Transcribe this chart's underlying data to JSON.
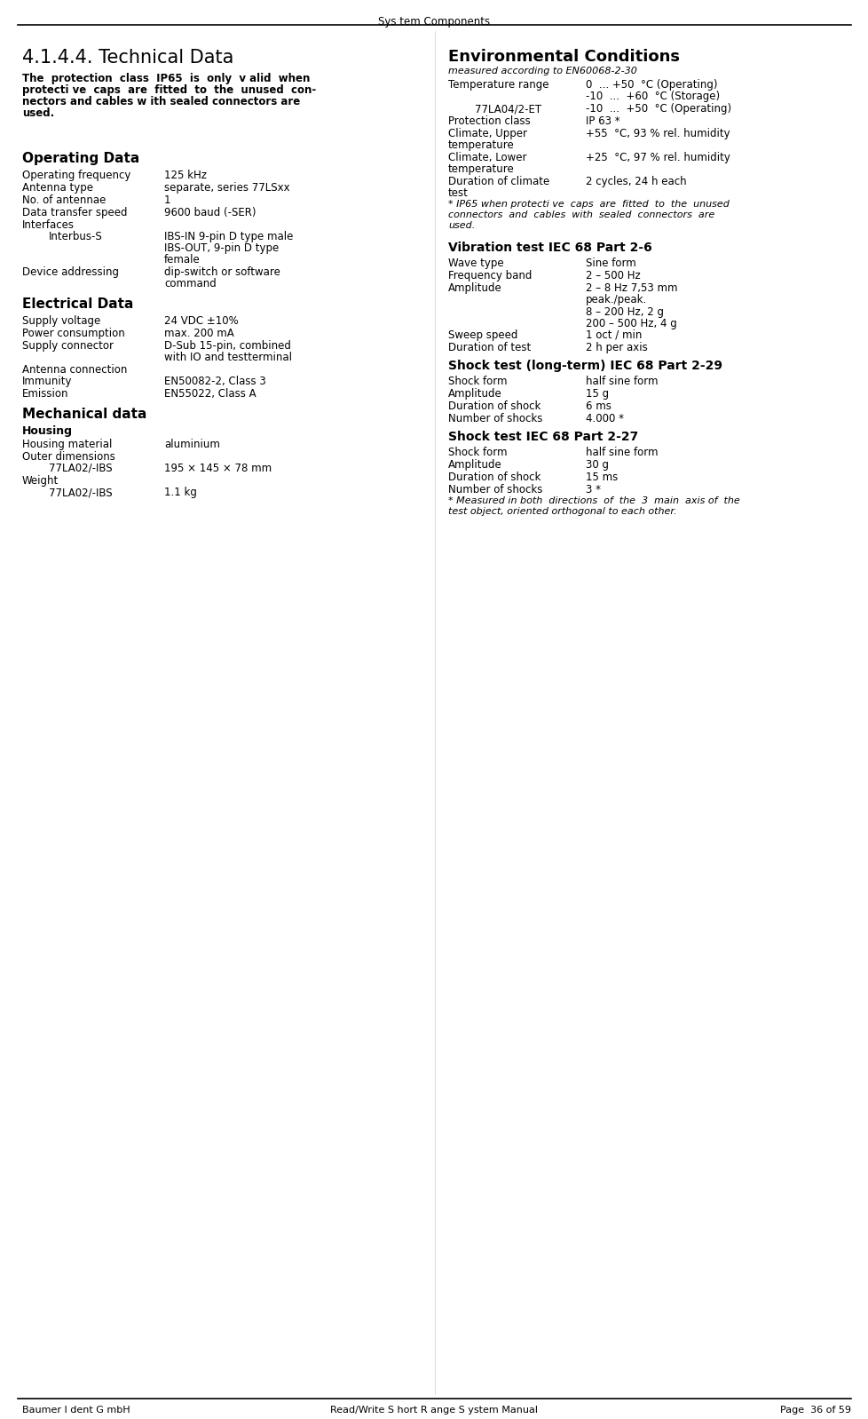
{
  "header_title": "Sys tem Components",
  "footer_left": "Baumer I dent G mbH",
  "footer_center": "Read/Write S hort R ange S ystem Manual",
  "footer_right": "Page  36 of 59",
  "page_title": "4.1.4.4. Technical Data",
  "env_title": "Environmental Conditions",
  "warning_text": "The  protection  class  IP65  is  only  v alid  when\nprotecti ve  caps  are  fitted  to  the  unused  con-\nnectors and cables w ith sealed connectors are\nused.",
  "left_sections": [
    {
      "type": "section_header",
      "text": "Operating Data"
    },
    {
      "type": "row",
      "label": "Operating frequency",
      "value": "125 kHz"
    },
    {
      "type": "row",
      "label": "Antenna type",
      "value": "separate, series 77LSxx"
    },
    {
      "type": "row",
      "label": "No. of antennae",
      "value": "1"
    },
    {
      "type": "row",
      "label": "Data transfer speed",
      "value": "9600 baud (-SER)"
    },
    {
      "type": "label_only",
      "label": "Interfaces"
    },
    {
      "type": "row_indented",
      "label": "Interbus-S",
      "value": "IBS-IN 9-pin D type male\nIBS-OUT, 9-pin D type\nfemale"
    },
    {
      "type": "row",
      "label": "Device addressing",
      "value": "dip-switch or software\ncommand"
    },
    {
      "type": "section_header",
      "text": "Electrical Data"
    },
    {
      "type": "row",
      "label": "Supply voltage",
      "value": "24 VDC ±10%"
    },
    {
      "type": "row",
      "label": "Power consumption",
      "value": "max. 200 mA"
    },
    {
      "type": "row",
      "label": "Supply connector",
      "value": "D-Sub 15-pin, combined\nwith IO and testterminal"
    },
    {
      "type": "label_only",
      "label": "Antenna connection"
    },
    {
      "type": "row",
      "label": "Immunity",
      "value": "EN50082-2, Class 3"
    },
    {
      "type": "row",
      "label": "Emission",
      "value": "EN55022, Class A"
    },
    {
      "type": "section_header",
      "text": "Mechanical data"
    },
    {
      "type": "subsection_header",
      "text": "Housing"
    },
    {
      "type": "row",
      "label": "Housing material",
      "value": "aluminium"
    },
    {
      "type": "label_only",
      "label": "Outer dimensions"
    },
    {
      "type": "row_indented",
      "label": "77LA02/-IBS",
      "value": "195 × 145 × 78 mm"
    },
    {
      "type": "label_only",
      "label": "Weight"
    },
    {
      "type": "row_indented",
      "label": "77LA02/-IBS",
      "value": "1.1 kg"
    }
  ],
  "right_sections": [
    {
      "type": "italic",
      "text": "measured according to EN60068-2-30"
    },
    {
      "type": "row",
      "label": "Temperature range",
      "value": "0  ... +50  °C (Operating)\n-10  ...  +60  °C (Storage)"
    },
    {
      "type": "row_indented",
      "label": "77LA04/2-ET",
      "value": "-10  ...  +50  °C (Operating)"
    },
    {
      "type": "row",
      "label": "Protection class",
      "value": "IP 63 *"
    },
    {
      "type": "row",
      "label": "Climate, Upper\ntemperature",
      "value": "+55  °C, 93 % rel. humidity"
    },
    {
      "type": "row",
      "label": "Climate, Lower\ntemperature",
      "value": "+25  °C, 97 % rel. humidity"
    },
    {
      "type": "row",
      "label": "Duration of climate\ntest",
      "value": "2 cycles, 24 h each"
    },
    {
      "type": "italic_small",
      "text": "* IP65 when protecti ve  caps  are  fitted  to  the  unused\nconnectors  and  cables  with  sealed  connectors  are\nused."
    },
    {
      "type": "section_header",
      "text": "Vibration test IEC 68 Part 2-6"
    },
    {
      "type": "row",
      "label": "Wave type",
      "value": "Sine form"
    },
    {
      "type": "row",
      "label": "Frequency band",
      "value": "2 – 500 Hz"
    },
    {
      "type": "row",
      "label": "Amplitude",
      "value": "2 – 8 Hz 7,53 mm\npeak./peak."
    },
    {
      "type": "row_value_only",
      "value": "8 – 200 Hz, 2 g"
    },
    {
      "type": "row_value_only",
      "value": "200 – 500 Hz, 4 g"
    },
    {
      "type": "row",
      "label": "Sweep speed",
      "value": "1 oct / min"
    },
    {
      "type": "row",
      "label": "Duration of test",
      "value": "2 h per axis"
    },
    {
      "type": "section_header",
      "text": "Shock test (long-term) IEC 68 Part 2-29"
    },
    {
      "type": "row",
      "label": "Shock form",
      "value": "half sine form"
    },
    {
      "type": "row",
      "label": "Amplitude",
      "value": "15 g"
    },
    {
      "type": "row",
      "label": "Duration of shock",
      "value": "6 ms"
    },
    {
      "type": "row",
      "label": "Number of shocks",
      "value": "4.000 *"
    },
    {
      "type": "section_header",
      "text": "Shock test IEC 68 Part 2-27"
    },
    {
      "type": "row",
      "label": "Shock form",
      "value": "half sine form"
    },
    {
      "type": "row",
      "label": "Amplitude",
      "value": "30 g"
    },
    {
      "type": "row",
      "label": "Duration of shock",
      "value": "15 ms"
    },
    {
      "type": "row",
      "label": "Number of shocks",
      "value": "3 *"
    },
    {
      "type": "italic_small",
      "text": "* Measured in both  directions  of  the  3  main  axis of  the\ntest object, oriented orthogonal to each other."
    }
  ],
  "bg_color": "#ffffff",
  "text_color": "#000000",
  "font_family": "monospace"
}
